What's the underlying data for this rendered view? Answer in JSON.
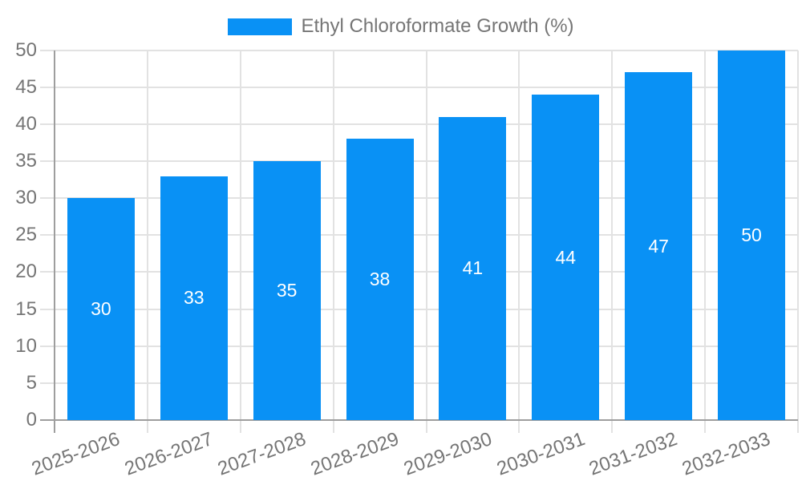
{
  "legend": {
    "label": "Ethyl Chloroformate Growth (%)"
  },
  "chart_data": {
    "type": "bar",
    "title": "Ethyl Chloroformate Growth (%)",
    "series_name": "Ethyl Chloroformate Growth (%)",
    "categories": [
      "2025-2026",
      "2026-2027",
      "2027-2028",
      "2028-2029",
      "2029-2030",
      "2030-2031",
      "2031-2032",
      "2032-2033"
    ],
    "values": [
      30,
      33,
      35,
      38,
      41,
      44,
      47,
      50
    ],
    "xlabel": "",
    "ylabel": "",
    "ylim": [
      0,
      50
    ],
    "ytick_step": 5,
    "grid": true,
    "legend_position": "top",
    "value_labels": "inside-center",
    "colors": {
      "bar": "#0991f5",
      "value_label": "#ffffff",
      "grid_line": "#e2e2e2",
      "axis_line": "#9e9e9e",
      "tick_label": "#757575",
      "background": "#ffffff"
    }
  }
}
